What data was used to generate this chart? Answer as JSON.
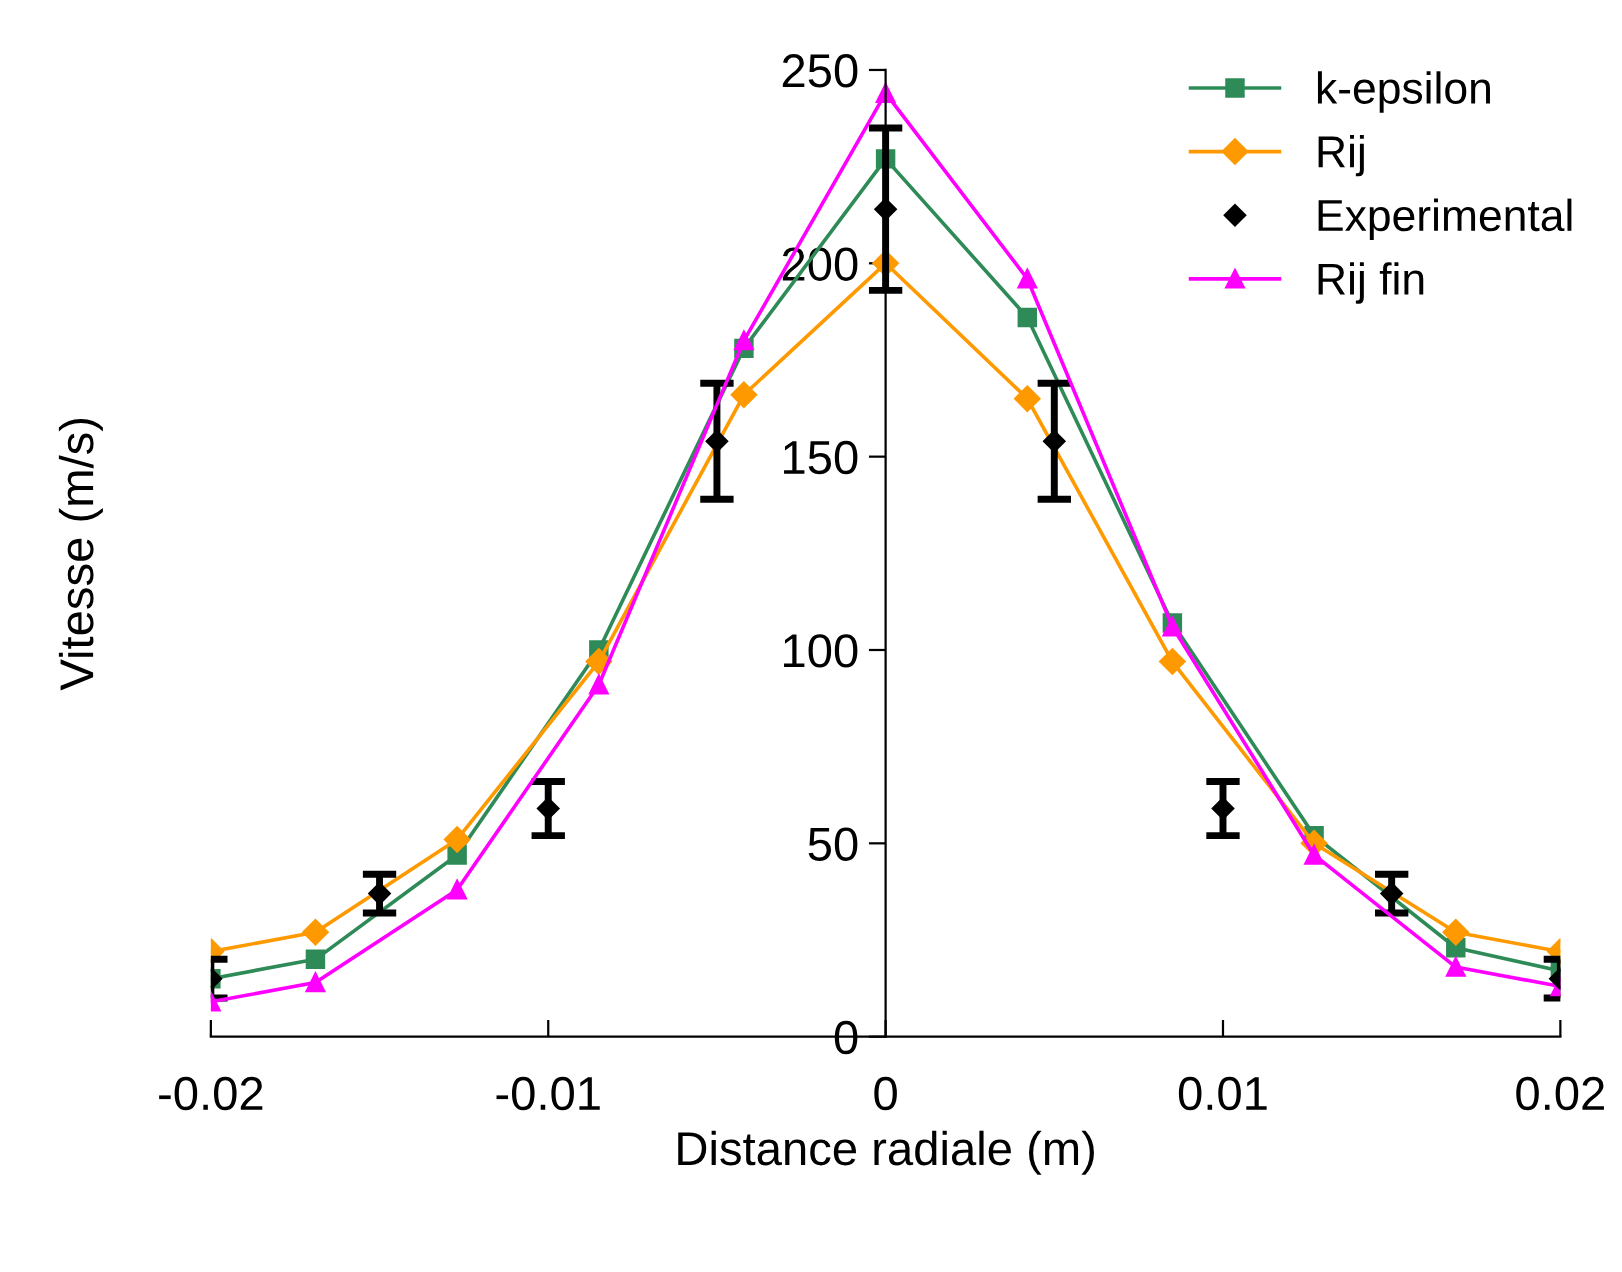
{
  "chart_data": {
    "type": "line",
    "xlabel": "Distance radiale (m)",
    "ylabel": "Vitesse (m/s)",
    "xlim": [
      -0.02,
      0.02
    ],
    "xticks": [
      -0.02,
      -0.01,
      0,
      0.01,
      0.02
    ],
    "ylim": [
      0,
      250
    ],
    "yticks": [
      0,
      50,
      100,
      150,
      200,
      250
    ],
    "grid": false,
    "legend": "top right",
    "line_style": "solid",
    "series": [
      {
        "name": "k-epsilon",
        "color": "#2e8b57",
        "marker": "square",
        "x": [
          -0.02,
          -0.0169,
          -0.0127,
          -0.0085,
          -0.0042,
          0,
          0.0042,
          0.0085,
          0.0127,
          0.0169,
          0.02
        ],
        "values": [
          15,
          20,
          47,
          100,
          178,
          227,
          186,
          107,
          52,
          23,
          17
        ]
      },
      {
        "name": "Rij",
        "color": "#ff9900",
        "marker": "diamond",
        "x": [
          -0.02,
          -0.0169,
          -0.0127,
          -0.0085,
          -0.0042,
          0,
          0.0042,
          0.0085,
          0.0127,
          0.0169,
          0.02
        ],
        "values": [
          22,
          27,
          51,
          97,
          166,
          200,
          165,
          97,
          50,
          27,
          22
        ]
      },
      {
        "name": "Experimental",
        "type": "scatter",
        "color": "#000000",
        "marker": "diamond",
        "x": [
          -0.02,
          -0.015,
          -0.01,
          -0.005,
          0,
          0.005,
          0.01,
          0.015,
          0.02
        ],
        "values": [
          15,
          37,
          59,
          154,
          214,
          154,
          59,
          37,
          15
        ],
        "errors": [
          5,
          5,
          7,
          15,
          21,
          15,
          7,
          5,
          5
        ]
      },
      {
        "name": "Rij fin",
        "color": "#ff00ff",
        "marker": "triangle",
        "x": [
          -0.02,
          -0.0169,
          -0.0127,
          -0.0085,
          -0.0042,
          0,
          0.0042,
          0.0085,
          0.0127,
          0.0169,
          0.02
        ],
        "values": [
          9,
          14,
          38,
          91,
          180,
          244,
          196,
          106,
          47,
          18,
          13
        ]
      }
    ]
  }
}
